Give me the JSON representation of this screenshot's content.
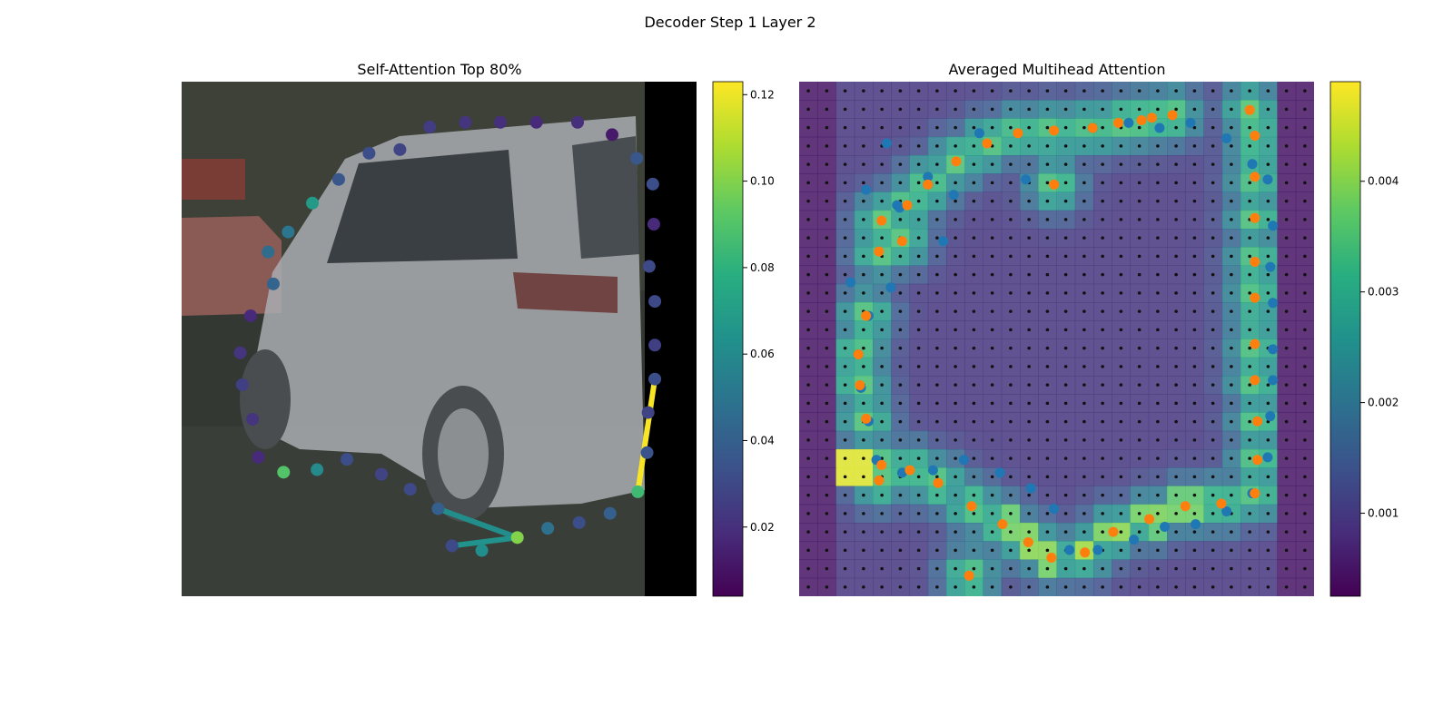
{
  "figure": {
    "suptitle": "Decoder Step 1 Layer 2"
  },
  "chart_data": [
    {
      "type": "scatter",
      "title": "Self-Attention Top 80%",
      "xlim": [
        0,
        100
      ],
      "ylim": [
        0,
        100
      ],
      "image_note": "photo of a silver minivan",
      "colormap": "viridis",
      "colorbar": {
        "min": 0.004,
        "max": 0.123,
        "ticks": [
          0.02,
          0.04,
          0.06,
          0.08,
          0.1,
          0.12
        ],
        "tick_labels": [
          "0.02",
          "0.04",
          "0.06",
          "0.08",
          "0.10",
          "0.12"
        ]
      },
      "points": [
        {
          "x": 48.2,
          "y": 91.2,
          "v": 0.025
        },
        {
          "x": 55.1,
          "y": 92.1,
          "v": 0.022
        },
        {
          "x": 61.9,
          "y": 92.1,
          "v": 0.02
        },
        {
          "x": 68.9,
          "y": 92.1,
          "v": 0.018
        },
        {
          "x": 76.9,
          "y": 92.1,
          "v": 0.02
        },
        {
          "x": 83.6,
          "y": 89.7,
          "v": 0.012
        },
        {
          "x": 88.4,
          "y": 85.1,
          "v": 0.036
        },
        {
          "x": 91.5,
          "y": 80.1,
          "v": 0.032
        },
        {
          "x": 91.7,
          "y": 72.3,
          "v": 0.018
        },
        {
          "x": 90.8,
          "y": 64.1,
          "v": 0.03
        },
        {
          "x": 91.9,
          "y": 57.3,
          "v": 0.03
        },
        {
          "x": 91.9,
          "y": 48.8,
          "v": 0.026
        },
        {
          "x": 91.9,
          "y": 42.2,
          "v": 0.032
        },
        {
          "x": 90.6,
          "y": 35.7,
          "v": 0.028
        },
        {
          "x": 90.4,
          "y": 27.9,
          "v": 0.034
        },
        {
          "x": 88.6,
          "y": 20.3,
          "v": 0.085
        },
        {
          "x": 83.2,
          "y": 16.1,
          "v": 0.04
        },
        {
          "x": 77.2,
          "y": 14.3,
          "v": 0.032
        },
        {
          "x": 71.1,
          "y": 13.2,
          "v": 0.048
        },
        {
          "x": 65.2,
          "y": 11.4,
          "v": 0.1
        },
        {
          "x": 58.3,
          "y": 8.9,
          "v": 0.062
        },
        {
          "x": 52.5,
          "y": 9.8,
          "v": 0.03
        },
        {
          "x": 49.8,
          "y": 17.0,
          "v": 0.04
        },
        {
          "x": 44.4,
          "y": 20.8,
          "v": 0.03
        },
        {
          "x": 38.8,
          "y": 23.7,
          "v": 0.028
        },
        {
          "x": 32.1,
          "y": 26.6,
          "v": 0.032
        },
        {
          "x": 26.3,
          "y": 24.6,
          "v": 0.06
        },
        {
          "x": 19.8,
          "y": 24.1,
          "v": 0.09
        },
        {
          "x": 14.9,
          "y": 27.0,
          "v": 0.018
        },
        {
          "x": 13.8,
          "y": 34.4,
          "v": 0.022
        },
        {
          "x": 11.8,
          "y": 41.1,
          "v": 0.026
        },
        {
          "x": 11.4,
          "y": 47.3,
          "v": 0.022
        },
        {
          "x": 13.4,
          "y": 54.5,
          "v": 0.018
        },
        {
          "x": 17.8,
          "y": 60.7,
          "v": 0.042
        },
        {
          "x": 16.8,
          "y": 66.9,
          "v": 0.046
        },
        {
          "x": 20.7,
          "y": 70.8,
          "v": 0.05
        },
        {
          "x": 25.4,
          "y": 76.4,
          "v": 0.068
        },
        {
          "x": 30.5,
          "y": 81.0,
          "v": 0.036
        },
        {
          "x": 36.4,
          "y": 86.1,
          "v": 0.032
        },
        {
          "x": 42.4,
          "y": 86.8,
          "v": 0.028
        }
      ],
      "segments": [
        {
          "from": [
            91.9,
            42.2
          ],
          "to": [
            88.6,
            20.3
          ],
          "v": 0.122
        },
        {
          "from": [
            49.8,
            17.0
          ],
          "to": [
            65.2,
            11.4
          ],
          "v": 0.062
        },
        {
          "from": [
            52.5,
            9.8
          ],
          "to": [
            65.2,
            11.4
          ],
          "v": 0.064
        }
      ]
    },
    {
      "type": "heatmap",
      "title": "Averaged Multihead Attention",
      "xlim": [
        0,
        100
      ],
      "ylim": [
        0,
        100
      ],
      "colormap": "viridis",
      "grid_cols": 28,
      "grid_rows": 28,
      "colorbar": {
        "min": 0.00025,
        "max": 0.0049,
        "ticks": [
          0.001,
          0.002,
          0.003,
          0.004
        ],
        "tick_labels": [
          "0.001",
          "0.002",
          "0.003",
          "0.004"
        ]
      },
      "series": [
        {
          "color": "#1f77b4",
          "points": [
            {
              "x": 10.0,
              "y": 61.0
            },
            {
              "x": 13.0,
              "y": 79.0
            },
            {
              "x": 17.0,
              "y": 88.0
            },
            {
              "x": 19.0,
              "y": 76.0
            },
            {
              "x": 25.0,
              "y": 80.0
            },
            {
              "x": 28.0,
              "y": 69.0
            },
            {
              "x": 35.0,
              "y": 90.0
            },
            {
              "x": 44.0,
              "y": 81.0
            },
            {
              "x": 57.0,
              "y": 91.0
            },
            {
              "x": 64.0,
              "y": 92.0
            },
            {
              "x": 70.0,
              "y": 91.0
            },
            {
              "x": 76.0,
              "y": 92.0
            },
            {
              "x": 83.0,
              "y": 89.0
            },
            {
              "x": 88.0,
              "y": 84.0
            },
            {
              "x": 91.0,
              "y": 81.0
            },
            {
              "x": 92.0,
              "y": 72.0
            },
            {
              "x": 91.5,
              "y": 64.0
            },
            {
              "x": 92.0,
              "y": 57.0
            },
            {
              "x": 92.0,
              "y": 48.0
            },
            {
              "x": 92.0,
              "y": 42.0
            },
            {
              "x": 91.5,
              "y": 35.0
            },
            {
              "x": 91.0,
              "y": 27.0
            },
            {
              "x": 88.0,
              "y": 20.0
            },
            {
              "x": 83.0,
              "y": 16.5
            },
            {
              "x": 77.0,
              "y": 14.0
            },
            {
              "x": 71.0,
              "y": 13.5
            },
            {
              "x": 65.0,
              "y": 11.0
            },
            {
              "x": 58.0,
              "y": 9.0
            },
            {
              "x": 52.5,
              "y": 9.0
            },
            {
              "x": 49.5,
              "y": 17.0
            },
            {
              "x": 45.0,
              "y": 21.0
            },
            {
              "x": 39.0,
              "y": 24.0
            },
            {
              "x": 32.0,
              "y": 26.5
            },
            {
              "x": 26.0,
              "y": 24.5
            },
            {
              "x": 20.0,
              "y": 24.0
            },
            {
              "x": 15.0,
              "y": 26.5
            },
            {
              "x": 13.5,
              "y": 34.0
            },
            {
              "x": 12.0,
              "y": 40.5
            },
            {
              "x": 11.5,
              "y": 47.0
            },
            {
              "x": 13.5,
              "y": 54.5
            },
            {
              "x": 17.8,
              "y": 60.0
            },
            {
              "x": 19.5,
              "y": 75.5
            },
            {
              "x": 25.0,
              "y": 81.5
            },
            {
              "x": 30.0,
              "y": 78.0
            }
          ]
        },
        {
          "color": "#ff7f0e",
          "points": [
            {
              "x": 11.5,
              "y": 47.0
            },
            {
              "x": 11.8,
              "y": 41.0
            },
            {
              "x": 13.0,
              "y": 54.5
            },
            {
              "x": 15.5,
              "y": 67.0
            },
            {
              "x": 16.0,
              "y": 73.0
            },
            {
              "x": 20.0,
              "y": 69.0
            },
            {
              "x": 21.0,
              "y": 76.0
            },
            {
              "x": 25.0,
              "y": 80.0
            },
            {
              "x": 30.5,
              "y": 84.5
            },
            {
              "x": 36.5,
              "y": 88.0
            },
            {
              "x": 42.5,
              "y": 90.0
            },
            {
              "x": 49.5,
              "y": 90.5
            },
            {
              "x": 57.0,
              "y": 91.0
            },
            {
              "x": 62.0,
              "y": 92.0
            },
            {
              "x": 68.5,
              "y": 93.0
            },
            {
              "x": 72.5,
              "y": 93.5
            },
            {
              "x": 87.5,
              "y": 94.5
            },
            {
              "x": 88.5,
              "y": 89.5
            },
            {
              "x": 88.5,
              "y": 81.5
            },
            {
              "x": 88.5,
              "y": 73.5
            },
            {
              "x": 88.5,
              "y": 65.0
            },
            {
              "x": 88.5,
              "y": 58.0
            },
            {
              "x": 88.5,
              "y": 49.0
            },
            {
              "x": 88.5,
              "y": 42.0
            },
            {
              "x": 89.0,
              "y": 34.0
            },
            {
              "x": 89.0,
              "y": 26.5
            },
            {
              "x": 88.5,
              "y": 20.0
            },
            {
              "x": 82.0,
              "y": 18.0
            },
            {
              "x": 75.0,
              "y": 17.5
            },
            {
              "x": 68.0,
              "y": 15.0
            },
            {
              "x": 61.0,
              "y": 12.5
            },
            {
              "x": 55.5,
              "y": 8.5
            },
            {
              "x": 49.0,
              "y": 7.5
            },
            {
              "x": 44.5,
              "y": 10.5
            },
            {
              "x": 39.5,
              "y": 14.0
            },
            {
              "x": 33.5,
              "y": 17.5
            },
            {
              "x": 27.0,
              "y": 22.0
            },
            {
              "x": 21.5,
              "y": 24.5
            },
            {
              "x": 16.0,
              "y": 25.5
            },
            {
              "x": 13.0,
              "y": 34.5
            },
            {
              "x": 15.5,
              "y": 22.5
            },
            {
              "x": 33.0,
              "y": 4.0
            },
            {
              "x": 49.5,
              "y": 80.0
            },
            {
              "x": 66.5,
              "y": 92.5
            }
          ]
        }
      ]
    }
  ]
}
